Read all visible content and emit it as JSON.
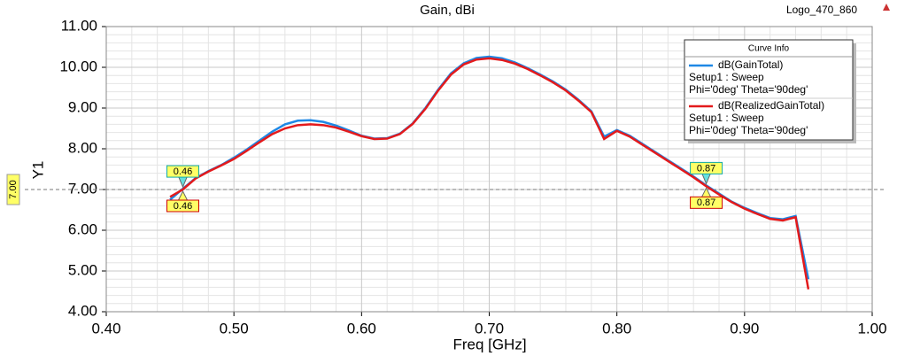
{
  "chart_data": {
    "type": "line",
    "title": "Gain, dBi",
    "corner_label": "Logo_470_860",
    "xlabel": "Freq [GHz]",
    "ylabel": "Y1",
    "x": [
      0.45,
      0.46,
      0.47,
      0.48,
      0.49,
      0.5,
      0.51,
      0.52,
      0.53,
      0.54,
      0.55,
      0.56,
      0.57,
      0.58,
      0.59,
      0.6,
      0.61,
      0.62,
      0.63,
      0.64,
      0.65,
      0.66,
      0.67,
      0.68,
      0.69,
      0.7,
      0.71,
      0.72,
      0.73,
      0.74,
      0.75,
      0.76,
      0.77,
      0.78,
      0.79,
      0.8,
      0.81,
      0.82,
      0.83,
      0.84,
      0.85,
      0.86,
      0.87,
      0.88,
      0.89,
      0.9,
      0.91,
      0.92,
      0.93,
      0.94,
      0.95
    ],
    "series": [
      {
        "name": "dB(GainTotal)",
        "detail": [
          "Setup1 : Sweep",
          "Phi='0deg' Theta='90deg'"
        ],
        "color": "#1e88e5",
        "values": [
          6.75,
          7.02,
          7.28,
          7.45,
          7.6,
          7.78,
          7.98,
          8.2,
          8.42,
          8.6,
          8.69,
          8.7,
          8.66,
          8.57,
          8.45,
          8.32,
          8.25,
          8.26,
          8.37,
          8.62,
          9.0,
          9.45,
          9.85,
          10.1,
          10.23,
          10.26,
          10.22,
          10.12,
          9.98,
          9.82,
          9.65,
          9.45,
          9.2,
          8.92,
          8.3,
          8.46,
          8.32,
          8.12,
          7.92,
          7.72,
          7.52,
          7.32,
          7.1,
          6.9,
          6.7,
          6.55,
          6.42,
          6.3,
          6.27,
          6.35,
          4.8
        ],
        "markers": [
          0.46,
          0.87
        ]
      },
      {
        "name": "dB(RealizedGainTotal)",
        "detail": [
          "Setup1 : Sweep",
          "Phi='0deg' Theta='90deg'"
        ],
        "color": "#e31a1c",
        "values": [
          6.82,
          7.0,
          7.27,
          7.44,
          7.59,
          7.75,
          7.95,
          8.16,
          8.36,
          8.5,
          8.58,
          8.6,
          8.58,
          8.52,
          8.42,
          8.31,
          8.24,
          8.25,
          8.36,
          8.61,
          8.98,
          9.43,
          9.82,
          10.07,
          10.19,
          10.22,
          10.18,
          10.09,
          9.96,
          9.8,
          9.63,
          9.43,
          9.18,
          8.9,
          8.24,
          8.44,
          8.3,
          8.1,
          7.9,
          7.7,
          7.5,
          7.3,
          7.08,
          6.88,
          6.69,
          6.53,
          6.4,
          6.28,
          6.24,
          6.32,
          4.55
        ],
        "markers": [
          0.46,
          0.87
        ]
      }
    ],
    "legend_title": "Curve Info",
    "reference_line": {
      "value": 7.0,
      "label": "7.00"
    },
    "xlim": [
      0.4,
      1.0
    ],
    "xticks": [
      {
        "value": 0.4,
        "label": "0.40"
      },
      {
        "value": 0.5,
        "label": "0.50"
      },
      {
        "value": 0.6,
        "label": "0.60"
      },
      {
        "value": 0.7,
        "label": "0.70"
      },
      {
        "value": 0.8,
        "label": "0.80"
      },
      {
        "value": 0.9,
        "label": "0.90"
      },
      {
        "value": 1.0,
        "label": "1.00"
      }
    ],
    "ylim": [
      4.0,
      11.0
    ],
    "yticks": [
      {
        "value": 4,
        "label": "4.00"
      },
      {
        "value": 5,
        "label": "5.00"
      },
      {
        "value": 6,
        "label": "6.00"
      },
      {
        "value": 7,
        "label": "7.00"
      },
      {
        "value": 8,
        "label": "8.00"
      },
      {
        "value": 9,
        "label": "9.00"
      },
      {
        "value": 10,
        "label": "10.00"
      },
      {
        "value": 11,
        "label": "11.00"
      }
    ],
    "grid": true
  }
}
